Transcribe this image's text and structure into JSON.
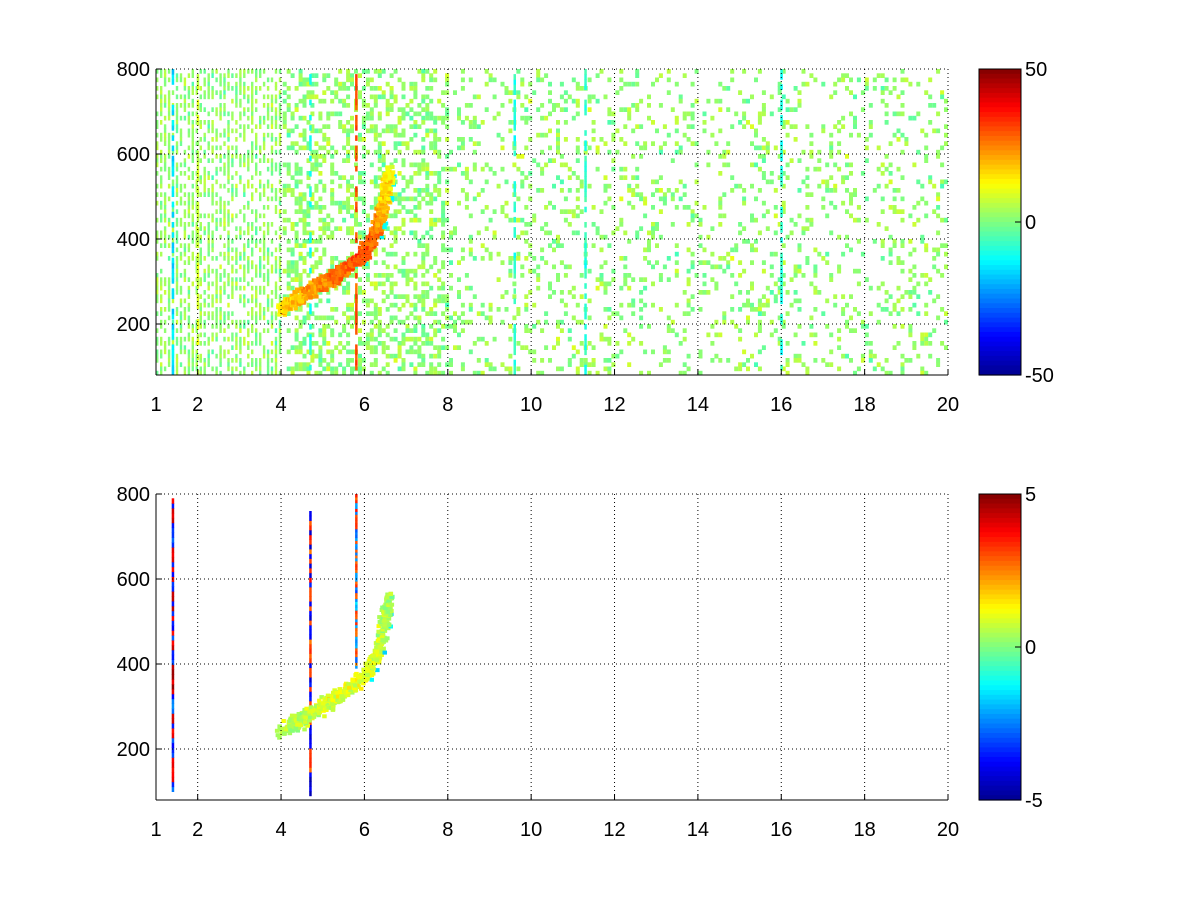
{
  "colormap": {
    "name": "jet",
    "stops": [
      "#00008f",
      "#0000ff",
      "#00ffff",
      "#ffff00",
      "#ff0000",
      "#800000"
    ]
  },
  "chart_data": [
    {
      "type": "heatmap",
      "title": "",
      "xlabel": "",
      "ylabel": "",
      "xlim": [
        1,
        20
      ],
      "ylim": [
        80,
        800
      ],
      "x_ticks": [
        1,
        2,
        4,
        6,
        8,
        10,
        12,
        14,
        16,
        18,
        20
      ],
      "y_ticks": [
        200,
        400,
        600,
        800
      ],
      "grid": true,
      "clim": [
        -50,
        50
      ],
      "colorbar_ticks": [
        50,
        0,
        -50
      ],
      "features": {
        "curved_ridge": {
          "description_values": [
            [
              4.0,
              235,
              15
            ],
            [
              4.5,
              265,
              20
            ],
            [
              5.0,
              295,
              25
            ],
            [
              5.5,
              325,
              28
            ],
            [
              6.0,
              365,
              30
            ],
            [
              6.3,
              420,
              25
            ],
            [
              6.5,
              500,
              18
            ],
            [
              6.6,
              560,
              12
            ]
          ]
        },
        "vertical_streaks": [
          {
            "x": 1.4,
            "value": -15
          },
          {
            "x": 2.0,
            "value": 8
          },
          {
            "x": 4.7,
            "value": -10
          },
          {
            "x": 5.8,
            "value": 30
          },
          {
            "x": 9.6,
            "value": -8
          },
          {
            "x": 11.3,
            "value": -8
          },
          {
            "x": 16.0,
            "value": -10
          }
        ]
      }
    },
    {
      "type": "heatmap",
      "title": "",
      "xlabel": "",
      "ylabel": "",
      "xlim": [
        1,
        20
      ],
      "ylim": [
        80,
        800
      ],
      "x_ticks": [
        1,
        2,
        4,
        6,
        8,
        10,
        12,
        14,
        16,
        18,
        20
      ],
      "y_ticks": [
        200,
        400,
        600,
        800
      ],
      "grid": true,
      "clim": [
        -5,
        5
      ],
      "colorbar_ticks": [
        5,
        0,
        -5
      ],
      "features": {
        "curved_ridge": {
          "description_values": [
            [
              4.0,
              240,
              0.5
            ],
            [
              4.5,
              270,
              0.5
            ],
            [
              5.0,
              300,
              0.8
            ],
            [
              5.5,
              330,
              1.0
            ],
            [
              6.0,
              370,
              1.0
            ],
            [
              6.3,
              420,
              0.8
            ],
            [
              6.5,
              500,
              0.5
            ],
            [
              6.6,
              560,
              0.3
            ]
          ]
        },
        "vertical_streaks": [
          {
            "x": 1.4,
            "value": 4,
            "from": 100,
            "to": 790
          },
          {
            "x": 4.7,
            "value": -4,
            "from": 90,
            "to": 760
          },
          {
            "x": 5.8,
            "value": 3,
            "from": 390,
            "to": 800
          }
        ]
      }
    }
  ]
}
